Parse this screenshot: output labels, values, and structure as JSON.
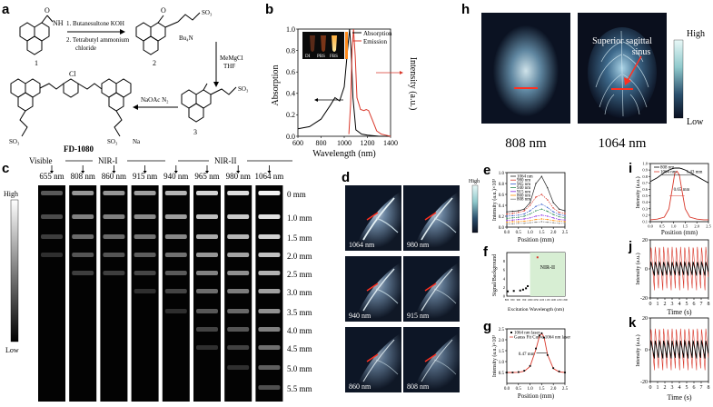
{
  "panel_labels": {
    "a": "a",
    "b": "b",
    "c": "c",
    "d": "d",
    "e": "e",
    "f": "f",
    "g": "g",
    "h": "h",
    "i": "i",
    "j": "j",
    "k": "k"
  },
  "a": {
    "step1": "1. Butanesultone  KOH",
    "step2a": "2. Tetrabutyl ammonium",
    "step2b": "chloride",
    "reagent_right": [
      "MeMgCl",
      "THF"
    ],
    "reagent_bottom": "NaOAc  N₂",
    "cmp1": "1",
    "cmp2": "2",
    "cmp3": "3",
    "nh": "NH",
    "o": "O",
    "cl": "Cl",
    "so3": "SO₃",
    "bu4n": "Bu₄N",
    "na": "Na",
    "product": "FD-1080"
  },
  "b": {
    "ylabel_left": "Absorption",
    "ylabel_right": "Intensity (a.u.)",
    "xlabel": "Wavelength (nm)",
    "legend": [
      "Absorption",
      "Emission"
    ],
    "inset_labels": [
      "DI",
      "PBS",
      "FBS"
    ],
    "colors": {
      "absorption": "#000000",
      "emission": "#d9382b"
    }
  },
  "c": {
    "bands": [
      "Visible",
      "NIR-I",
      "NIR-II"
    ],
    "wavelengths": [
      "655 nm",
      "808 nm",
      "860 nm",
      "915 nm",
      "940 nm",
      "965 nm",
      "980 nm",
      "1064 nm"
    ],
    "depths": [
      "0 mm",
      "1.0 mm",
      "1.5 mm",
      "2.0 mm",
      "2.5 mm",
      "3.0 mm",
      "3.5 mm",
      "4.0 mm",
      "4.5 mm",
      "5.0 mm",
      "5.5 mm"
    ],
    "scale_high": "High",
    "scale_low": "Low"
  },
  "d": {
    "tiles": [
      "1064 nm",
      "980 nm",
      "940 nm",
      "915 nm",
      "860 nm",
      "808 nm"
    ],
    "scale_high": "High"
  },
  "e": {
    "ylabel": "Intensity (a.u.)×10³",
    "xlabel": "Position (mm)",
    "legend": [
      "1064 nm",
      "980 nm",
      "965 nm",
      "940 nm",
      "915 nm",
      "860 nm",
      "808 nm"
    ]
  },
  "f": {
    "ylabel": "Signal/Background",
    "xlabel": "Excitation Wavelength (nm)",
    "region": "NIR-II"
  },
  "g": {
    "ylabel": "Intensity (a.u.)×10³",
    "xlabel": "Position (mm)",
    "legend": [
      "1064 nm laser",
      "Gauss Fit Curve 1064 nm laser"
    ],
    "fwhm": "0.47 mm"
  },
  "h": {
    "labels": [
      "808 nm",
      "1064 nm"
    ],
    "annotation": [
      "Superior sagittal",
      "sinus"
    ],
    "scale_high": "High",
    "scale_low": "Low"
  },
  "i": {
    "ylabel": "Intensity (a.u.)",
    "xlabel": "Position (mm)",
    "legend": [
      "808 nm",
      "1064 nm"
    ],
    "fwhm_808": "1.43 mm",
    "fwhm_1064": "0.65 mm"
  },
  "j": {
    "ylabel": "Intensity (a.u.)",
    "xlabel": "Time (s)"
  },
  "k": {
    "ylabel": "Intensity (a.u.)",
    "xlabel": "Time (s)"
  },
  "chart_data": [
    {
      "type": "line",
      "panel": "b",
      "xlim": [
        600,
        1400
      ],
      "ylim": [
        0,
        1.0
      ],
      "xticks": [
        "600",
        "800",
        "1000",
        "1200",
        "1400"
      ],
      "yticks": [
        "0.0",
        "0.2",
        "0.4",
        "0.6",
        "0.8",
        "1.0"
      ],
      "series": [
        {
          "name": "Absorption",
          "x": [
            600,
            700,
            800,
            880,
            920,
            960,
            1000,
            1030,
            1046,
            1060,
            1075,
            1100,
            1150,
            1200,
            1300,
            1400
          ],
          "y": [
            0.07,
            0.09,
            0.16,
            0.29,
            0.36,
            0.33,
            0.46,
            0.82,
            1.0,
            0.8,
            0.36,
            0.06,
            0.02,
            0.01,
            0.0,
            0.0
          ]
        },
        {
          "name": "Emission",
          "x": [
            1040,
            1055,
            1068,
            1080,
            1095,
            1110,
            1140,
            1170,
            1190,
            1210,
            1240,
            1280,
            1320,
            1360,
            1400
          ],
          "y": [
            0.02,
            0.3,
            0.8,
            1.0,
            0.75,
            0.36,
            0.25,
            0.24,
            0.25,
            0.24,
            0.16,
            0.05,
            0.02,
            0.01,
            0.0
          ]
        }
      ]
    },
    {
      "type": "line",
      "panel": "e",
      "xlim": [
        0,
        2.5
      ],
      "ylim": [
        0,
        1.0
      ],
      "xticks": [
        "0.0",
        "0.5",
        "1.0",
        "1.5",
        "2.0",
        "2.5"
      ],
      "yticks": [
        "0.0",
        "0.2",
        "0.4",
        "0.6",
        "0.8",
        "1.0"
      ],
      "x": [
        0.0,
        0.25,
        0.5,
        0.75,
        1.0,
        1.25,
        1.5,
        1.75,
        2.0,
        2.25,
        2.5
      ],
      "series": [
        {
          "name": "1064 nm",
          "y": [
            0.28,
            0.29,
            0.3,
            0.33,
            0.45,
            0.8,
            0.93,
            0.72,
            0.45,
            0.33,
            0.3
          ]
        },
        {
          "name": "980 nm",
          "y": [
            0.24,
            0.25,
            0.27,
            0.3,
            0.4,
            0.55,
            0.6,
            0.5,
            0.35,
            0.27,
            0.25
          ]
        },
        {
          "name": "965 nm",
          "y": [
            0.2,
            0.21,
            0.22,
            0.24,
            0.3,
            0.38,
            0.42,
            0.36,
            0.28,
            0.23,
            0.21
          ]
        },
        {
          "name": "940 nm",
          "y": [
            0.16,
            0.17,
            0.18,
            0.2,
            0.24,
            0.3,
            0.33,
            0.29,
            0.23,
            0.19,
            0.17
          ]
        },
        {
          "name": "915 nm",
          "y": [
            0.12,
            0.13,
            0.14,
            0.15,
            0.17,
            0.2,
            0.22,
            0.2,
            0.17,
            0.14,
            0.13
          ]
        },
        {
          "name": "860 nm",
          "y": [
            0.09,
            0.1,
            0.1,
            0.11,
            0.12,
            0.14,
            0.15,
            0.14,
            0.12,
            0.11,
            0.1
          ]
        },
        {
          "name": "808 nm",
          "y": [
            0.06,
            0.06,
            0.07,
            0.07,
            0.08,
            0.09,
            0.1,
            0.09,
            0.08,
            0.07,
            0.07
          ]
        }
      ]
    },
    {
      "type": "scatter",
      "panel": "f",
      "xlim": [
        800,
        1300
      ],
      "ylim": [
        0,
        10
      ],
      "xticks": [
        "800",
        "850",
        "900",
        "950",
        "1000",
        "1050",
        "1100",
        "1150",
        "1200",
        "1250",
        "1300"
      ],
      "yticks": [
        "0",
        "2",
        "4",
        "6",
        "8"
      ],
      "x": [
        808,
        860,
        915,
        940,
        965,
        980,
        1064
      ],
      "y": [
        1.1,
        1.2,
        1.3,
        1.5,
        1.8,
        2.3,
        8.9
      ]
    },
    {
      "type": "line",
      "panel": "g",
      "xlim": [
        0,
        2.5
      ],
      "ylim": [
        0,
        2.5
      ],
      "xticks": [
        "0.0",
        "0.5",
        "1.0",
        "1.5",
        "2.0",
        "2.5"
      ],
      "yticks": [
        "0.5",
        "1.0",
        "1.5",
        "2.0",
        "2.5"
      ],
      "x": [
        0.0,
        0.25,
        0.5,
        0.75,
        1.0,
        1.25,
        1.4,
        1.5,
        1.6,
        1.75,
        2.0,
        2.25,
        2.5
      ],
      "series": [
        {
          "name": "1064 nm laser",
          "y": [
            0.5,
            0.5,
            0.52,
            0.58,
            0.8,
            1.6,
            2.2,
            2.3,
            2.1,
            1.3,
            0.7,
            0.55,
            0.5
          ]
        },
        {
          "name": "Gauss Fit Curve 1064 nm laser",
          "y": [
            0.5,
            0.5,
            0.51,
            0.56,
            0.78,
            1.55,
            2.15,
            2.3,
            2.12,
            1.32,
            0.68,
            0.53,
            0.5
          ]
        }
      ]
    },
    {
      "type": "line",
      "panel": "i",
      "xlim": [
        0,
        2.5
      ],
      "ylim": [
        0.1,
        1.0
      ],
      "xticks": [
        "0.0",
        "0.5",
        "1.0",
        "1.5",
        "2.0",
        "2.5"
      ],
      "yticks": [
        "0.1",
        "0.2",
        "0.3",
        "0.4",
        "0.5",
        "0.6",
        "0.7",
        "0.8",
        "0.9",
        "1.0"
      ],
      "x": [
        0.0,
        0.3,
        0.6,
        0.8,
        0.95,
        1.05,
        1.15,
        1.25,
        1.35,
        1.5,
        1.7,
        2.0,
        2.3,
        2.5
      ],
      "series": [
        {
          "name": "808 nm",
          "y": [
            0.72,
            0.78,
            0.86,
            0.9,
            0.92,
            0.93,
            0.93,
            0.93,
            0.92,
            0.9,
            0.86,
            0.8,
            0.74,
            0.7
          ]
        },
        {
          "name": "1064 nm",
          "y": [
            0.13,
            0.14,
            0.17,
            0.3,
            0.62,
            0.85,
            0.88,
            0.82,
            0.6,
            0.3,
            0.17,
            0.14,
            0.13,
            0.13
          ]
        }
      ]
    },
    {
      "type": "line",
      "panel": "j",
      "xlim": [
        0,
        8
      ],
      "ylim": [
        -20,
        20
      ],
      "xticks": [
        "0",
        "1",
        "2",
        "3",
        "4",
        "5",
        "6",
        "7",
        "8"
      ],
      "yticks": [
        "-20",
        "0",
        "20"
      ],
      "series": [
        {
          "name": "1064 nm",
          "period": 0.58,
          "amplitude": 16
        },
        {
          "name": "808 nm",
          "period": 0.58,
          "amplitude": 5
        }
      ]
    },
    {
      "type": "line",
      "panel": "k",
      "xlim": [
        0,
        8
      ],
      "ylim": [
        -20,
        20
      ],
      "xticks": [
        "0",
        "1",
        "2",
        "3",
        "4",
        "5",
        "6",
        "7",
        "8"
      ],
      "yticks": [
        "-20",
        "0",
        "20"
      ],
      "series": [
        {
          "name": "1064 nm",
          "period": 0.58,
          "amplitude": 14
        },
        {
          "name": "808 nm",
          "period": 0.58,
          "amplitude": 6
        }
      ]
    }
  ]
}
